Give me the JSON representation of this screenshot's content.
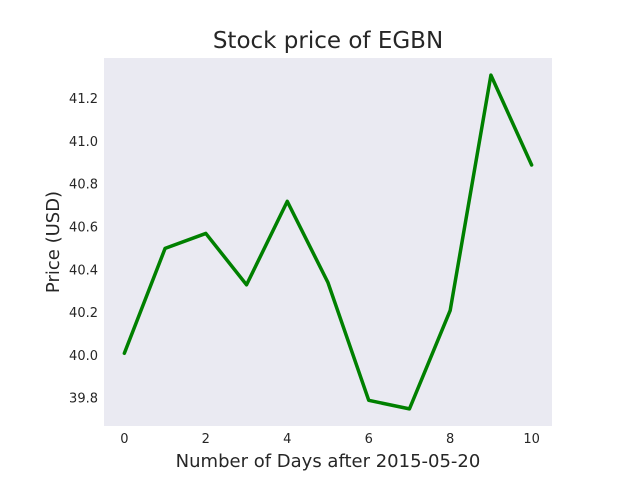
{
  "chart_data": {
    "type": "line",
    "title": "Stock price of EGBN",
    "xlabel": "Number of Days after 2015-05-20",
    "ylabel": "Price (USD)",
    "x": [
      0,
      1,
      2,
      3,
      4,
      5,
      6,
      7,
      8,
      9,
      10
    ],
    "series": [
      {
        "values": [
          40.01,
          40.5,
          40.57,
          40.33,
          40.72,
          40.34,
          39.79,
          39.75,
          40.21,
          41.31,
          40.89
        ],
        "color": "#008000"
      }
    ],
    "xlim": [
      -0.5,
      10.5
    ],
    "ylim": [
      39.67,
      41.39
    ],
    "xticks": [
      0,
      2,
      4,
      6,
      8,
      10
    ],
    "xtick_labels": [
      "0",
      "2",
      "4",
      "6",
      "8",
      "10"
    ],
    "yticks": [
      39.8,
      40.0,
      40.2,
      40.4,
      40.6,
      40.8,
      41.0,
      41.2
    ],
    "ytick_labels": [
      "39.8",
      "40.0",
      "40.2",
      "40.4",
      "40.6",
      "40.8",
      "41.0",
      "41.2"
    ],
    "grid": false,
    "legend": false,
    "background": "#eaeaf2"
  }
}
